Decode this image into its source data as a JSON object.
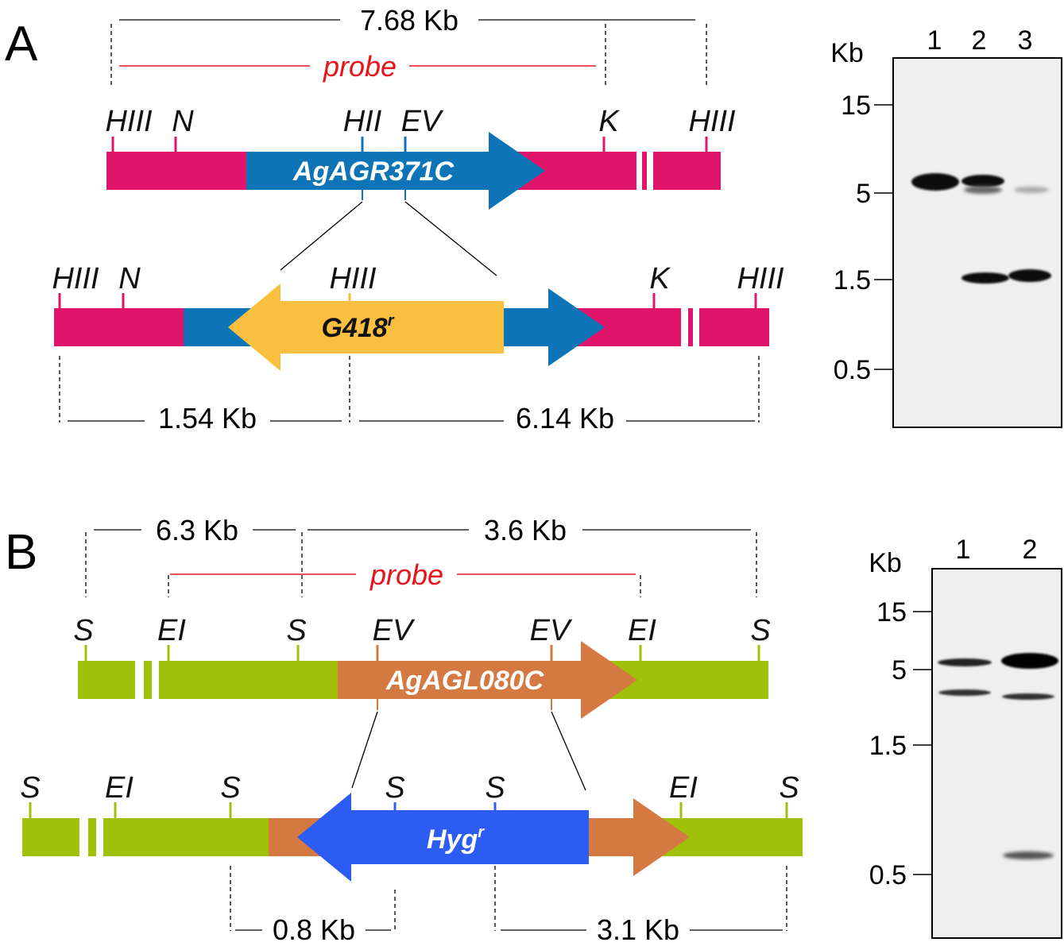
{
  "panel_a": {
    "letter": "A",
    "total_distance": "7.68 Kb",
    "probe_label": "probe",
    "wt_sites": [
      "HIII",
      "N",
      "HII",
      "EV",
      "K",
      "HIII"
    ],
    "wt_gene": "AgAGR371C",
    "mut_sites": [
      "HIII",
      "N",
      "HIII",
      "K",
      "HIII"
    ],
    "marker_gene": "G418",
    "marker_sup": "r",
    "left_distance": "1.54 Kb",
    "right_distance": "6.14 Kb",
    "blot": {
      "unit": "Kb",
      "lanes": [
        "1",
        "2",
        "3"
      ],
      "markers": [
        "15",
        "5",
        "1.5",
        "0.5"
      ]
    }
  },
  "panel_b": {
    "letter": "B",
    "left_top_distance": "6.3 Kb",
    "right_top_distance": "3.6 Kb",
    "probe_label": "probe",
    "wt_sites": [
      "S",
      "EI",
      "S",
      "EV",
      "EV",
      "EI",
      "S"
    ],
    "wt_gene": "AgAGL080C",
    "mut_sites": [
      "S",
      "EI",
      "S",
      "S",
      "S",
      "EI",
      "S"
    ],
    "marker_gene": "Hyg",
    "marker_sup": "r",
    "left_distance": "0.8 Kb",
    "right_distance": "3.1 Kb",
    "blot": {
      "unit": "Kb",
      "lanes": [
        "1",
        "2"
      ],
      "markers": [
        "15",
        "5",
        "1.5",
        "0.5"
      ]
    }
  },
  "colors": {
    "magenta": "#e0146a",
    "blue_gene": "#0e74b8",
    "yellow_marker": "#fbbf3f",
    "green": "#a0c10a",
    "orange_gene": "#d47941",
    "hyg_blue": "#2d5cf2",
    "probe_red": "#e8141c"
  }
}
